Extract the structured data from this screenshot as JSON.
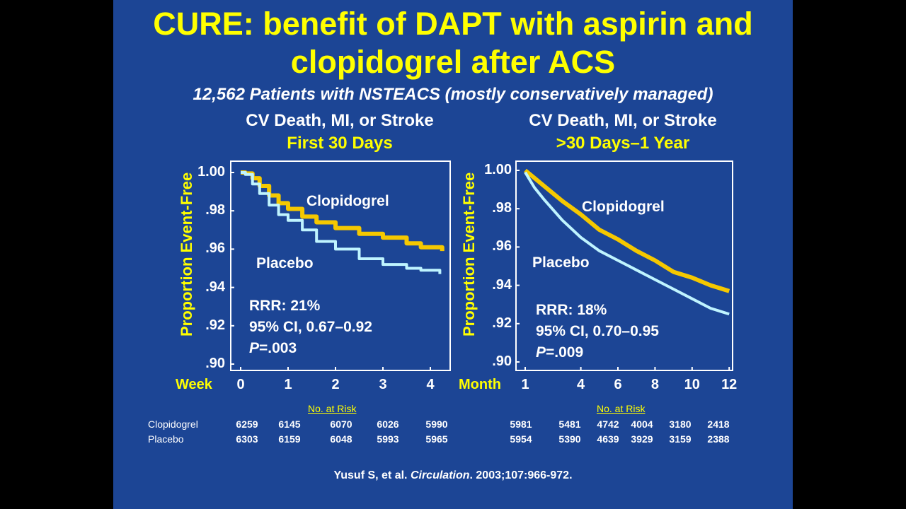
{
  "slide": {
    "title_line1": "CURE: benefit of DAPT with aspirin and",
    "title_line2": "clopidogrel after ACS",
    "subtitle": "12,562 Patients with NSTEACS (mostly conservatively managed)",
    "citation_author": "Yusuf S, et al. ",
    "citation_journal": "Circulation",
    "citation_rest": ". 2003;107:966-972.",
    "colors": {
      "background": "#1c4595",
      "accent": "#ffff00",
      "clopidogrel": "#f5c800",
      "placebo": "#bff4ff"
    }
  },
  "chart_data": [
    {
      "type": "line",
      "title_line1": "CV Death, MI, or Stroke",
      "title_line2": "First 30 Days",
      "ylabel": "Proportion Event-Free",
      "xlabel": "Week",
      "ylim": [
        0.9,
        1.0
      ],
      "xlim": [
        -0.2,
        4.3
      ],
      "yticks": [
        "1.00",
        ".98",
        ".96",
        ".94",
        ".92",
        ".90"
      ],
      "ytick_values": [
        1.0,
        0.98,
        0.96,
        0.94,
        0.92,
        0.9
      ],
      "xticks": [
        "0",
        "1",
        "2",
        "3",
        "4"
      ],
      "xtick_values": [
        0,
        1,
        2,
        3,
        4
      ],
      "series": [
        {
          "name": "Clopidogrel",
          "x": [
            0,
            0.1,
            0.25,
            0.4,
            0.6,
            0.8,
            1.0,
            1.3,
            1.6,
            2.0,
            2.5,
            3.0,
            3.5,
            3.8,
            4.25
          ],
          "y": [
            1.0,
            0.9995,
            0.997,
            0.993,
            0.988,
            0.984,
            0.981,
            0.977,
            0.974,
            0.971,
            0.968,
            0.966,
            0.963,
            0.961,
            0.959
          ]
        },
        {
          "name": "Placebo",
          "x": [
            0,
            0.1,
            0.25,
            0.4,
            0.6,
            0.8,
            1.0,
            1.3,
            1.6,
            2.0,
            2.5,
            3.0,
            3.5,
            3.8,
            4.2
          ],
          "y": [
            1.0,
            0.999,
            0.994,
            0.989,
            0.983,
            0.978,
            0.975,
            0.97,
            0.964,
            0.96,
            0.955,
            0.952,
            0.95,
            0.949,
            0.947
          ]
        }
      ],
      "annotations": {
        "rrr": "RRR: 21%",
        "ci": "95% CI, 0.67–0.92",
        "p_label": "P",
        "p_value": "=.003"
      },
      "risk_table": {
        "title": "No. at Risk",
        "rows": [
          {
            "label": "Clopidogrel",
            "values": [
              "6259",
              "6145",
              "6070",
              "6026",
              "5990"
            ]
          },
          {
            "label": "Placebo",
            "values": [
              "6303",
              "6159",
              "6048",
              "5993",
              "5965"
            ]
          }
        ]
      }
    },
    {
      "type": "line",
      "title_line1": "CV Death, MI, or Stroke",
      "title_line2": ">30 Days–1 Year",
      "ylabel": "Proportion Event-Free",
      "xlabel": "Month",
      "ylim": [
        0.9,
        1.0
      ],
      "xlim": [
        0.5,
        12.4
      ],
      "yticks": [
        "1.00",
        ".98",
        ".96",
        ".94",
        ".92",
        ".90"
      ],
      "ytick_values": [
        1.0,
        0.98,
        0.96,
        0.94,
        0.92,
        0.9
      ],
      "xticks": [
        "1",
        "4",
        "6",
        "8",
        "10",
        "12"
      ],
      "xtick_values": [
        1,
        4,
        6,
        8,
        10,
        12
      ],
      "series": [
        {
          "name": "Clopidogrel",
          "x": [
            1,
            1.5,
            2,
            3,
            4,
            5,
            6,
            7,
            8,
            9,
            10,
            11,
            12
          ],
          "y": [
            1.0,
            0.996,
            0.992,
            0.984,
            0.977,
            0.969,
            0.964,
            0.958,
            0.953,
            0.947,
            0.944,
            0.94,
            0.937
          ]
        },
        {
          "name": "Placebo",
          "x": [
            1,
            1.5,
            2,
            3,
            4,
            5,
            6,
            7,
            8,
            9,
            10,
            11,
            12
          ],
          "y": [
            0.999,
            0.991,
            0.985,
            0.974,
            0.965,
            0.958,
            0.953,
            0.948,
            0.943,
            0.938,
            0.933,
            0.928,
            0.925
          ]
        }
      ],
      "annotations": {
        "rrr": "RRR: 18%",
        "ci": "95% CI, 0.70–0.95",
        "p_label": "P",
        "p_value": "=.009"
      },
      "risk_table": {
        "title": "No. at Risk",
        "rows": [
          {
            "label": "",
            "values": [
              "5981",
              "5481",
              "4742",
              "4004",
              "3180",
              "2418"
            ]
          },
          {
            "label": "",
            "values": [
              "5954",
              "5390",
              "4639",
              "3929",
              "3159",
              "2388"
            ]
          }
        ]
      }
    }
  ]
}
